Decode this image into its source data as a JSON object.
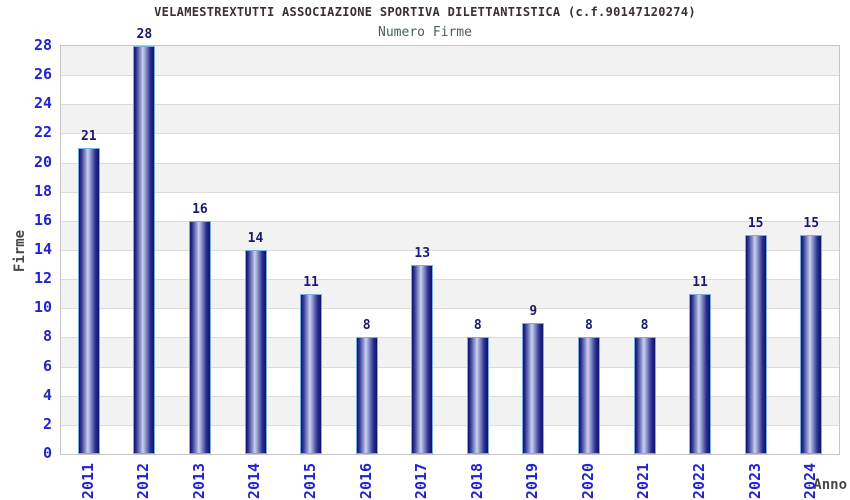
{
  "header": {
    "title": "VELAMESTREXTUTTI ASSOCIAZIONE SPORTIVA DILETTANTISTICA (c.f.90147120274)",
    "subtitle": "Numero Firme"
  },
  "chart_data": {
    "type": "bar",
    "title": "VELAMESTREXTUTTI ASSOCIAZIONE SPORTIVA DILETTANTISTICA (c.f.90147120274)",
    "subtitle": "Numero Firme",
    "xlabel": "Anno",
    "ylabel": "Firme",
    "categories": [
      "2011",
      "2012",
      "2013",
      "2014",
      "2015",
      "2016",
      "2017",
      "2018",
      "2019",
      "2020",
      "2021",
      "2022",
      "2023",
      "2024"
    ],
    "values": [
      21,
      28,
      16,
      14,
      11,
      8,
      13,
      8,
      9,
      8,
      8,
      11,
      15,
      15
    ],
    "ylim": [
      0,
      28
    ],
    "ytick_step": 2,
    "yticks": [
      0,
      2,
      4,
      6,
      8,
      10,
      12,
      14,
      16,
      18,
      20,
      22,
      24,
      26,
      28
    ],
    "grid": "horizontal-bands-alternating",
    "legend": "none",
    "bar_value_labels": true,
    "x_tick_rotation": -90,
    "colors": {
      "title_text": "#3b2f2f",
      "subtitle_text": "#4a6060",
      "axis_tick_text": "#2323cc",
      "bar_value_text": "#1a1a6e",
      "axis_title_text": "#474747",
      "bar_dark": "#10106e",
      "bar_mid_dark": "#2a2f8e",
      "bar_mid_light": "#a8b0dc",
      "bar_highlight": "#cdd2ef",
      "bar_border": "#79aede",
      "band_gray": "#f2f2f2",
      "band_white": "#ffffff",
      "gridline": "#dcdcdc",
      "plot_border": "#c6c6c6",
      "background": "#ffffff"
    }
  }
}
